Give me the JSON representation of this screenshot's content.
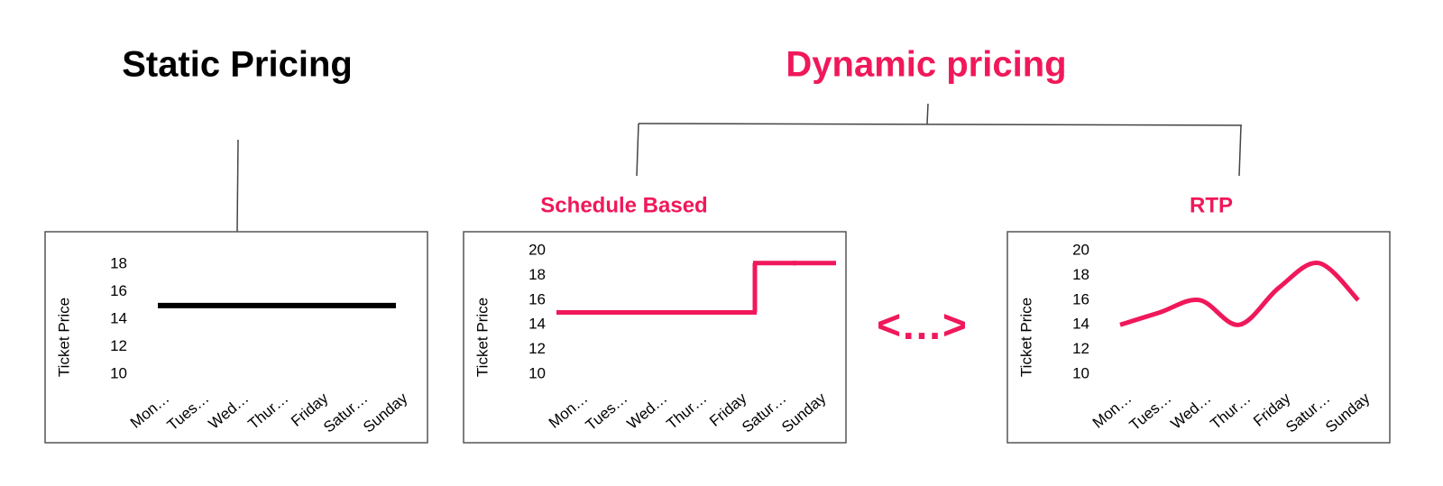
{
  "headings": {
    "static": "Static Pricing",
    "dynamic": "Dynamic pricing",
    "schedule": "Schedule Based",
    "rtp": "RTP",
    "ellipsis": "<…>"
  },
  "chart_data": [
    {
      "type": "line",
      "ylabel": "Ticket Price",
      "categories": [
        "Mon…",
        "Tues…",
        "Wed…",
        "Thur…",
        "Friday",
        "Satur…",
        "Sunday"
      ],
      "ylim": [
        10,
        19
      ],
      "yticks": [
        10,
        12,
        14,
        16,
        18
      ],
      "series": [
        {
          "color": "#000000",
          "values": [
            15,
            15,
            15,
            15,
            15,
            15,
            15
          ]
        }
      ]
    },
    {
      "type": "step",
      "ylabel": "Ticket Price",
      "categories": [
        "Mon…",
        "Tues…",
        "Wed…",
        "Thur…",
        "Friday",
        "Satur…",
        "Sunday"
      ],
      "ylim": [
        10,
        20
      ],
      "yticks": [
        10,
        12,
        14,
        16,
        18,
        20
      ],
      "series": [
        {
          "color": "#f0185a",
          "values": [
            15,
            15,
            15,
            15,
            15,
            19,
            19
          ]
        }
      ]
    },
    {
      "type": "line",
      "smooth": true,
      "ylabel": "Ticket Price",
      "categories": [
        "Mon…",
        "Tues…",
        "Wed…",
        "Thur…",
        "Friday",
        "Satur…",
        "Sunday"
      ],
      "ylim": [
        10,
        20
      ],
      "yticks": [
        10,
        12,
        14,
        16,
        18,
        20
      ],
      "series": [
        {
          "color": "#f0185a",
          "values": [
            14,
            15,
            16,
            14,
            17,
            19,
            16
          ]
        }
      ]
    }
  ]
}
